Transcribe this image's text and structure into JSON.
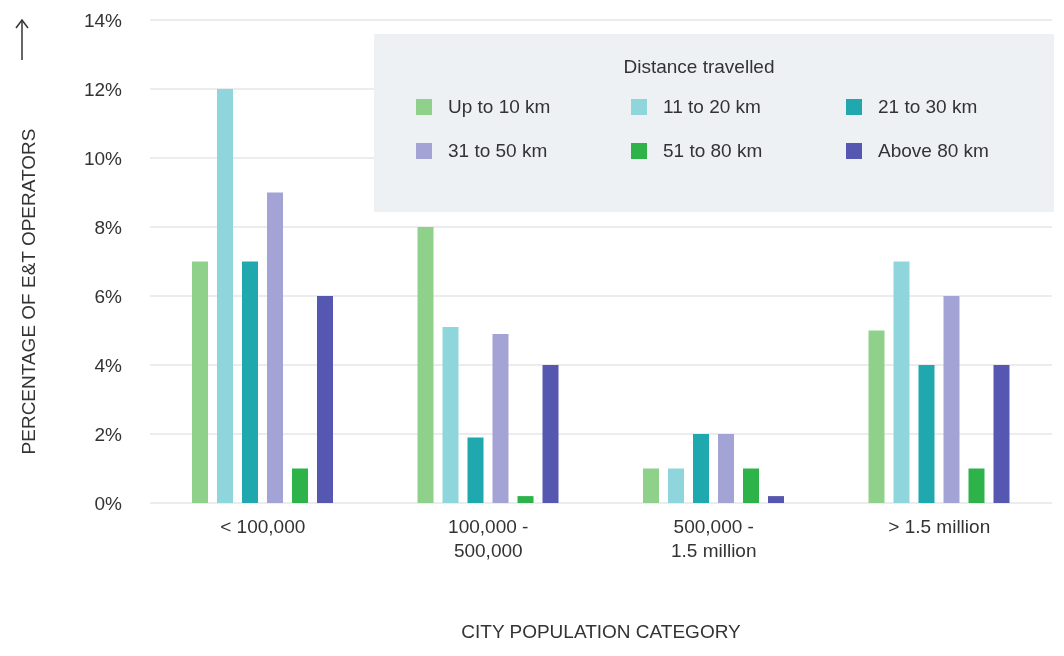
{
  "chart_data": {
    "type": "bar",
    "xlabel": "CITY POPULATION CATEGORY",
    "ylabel": "PERCENTAGE OF E&T OPERATORS",
    "legend_title": "Distance travelled",
    "categories": [
      "< 100,000",
      "100,000 - 500,000",
      "500,000 - 1.5 million",
      "> 1.5 million"
    ],
    "series": [
      {
        "name": "Up to 10 km",
        "color": "#8fd18a",
        "values": [
          7,
          8,
          1,
          5
        ]
      },
      {
        "name": "11 to 20 km",
        "color": "#8fd6dc",
        "values": [
          12,
          5.1,
          1,
          7
        ]
      },
      {
        "name": "21 to 30 km",
        "color": "#1fa8ad",
        "values": [
          7,
          1.9,
          2,
          4
        ]
      },
      {
        "name": "31 to 50 km",
        "color": "#a3a3d6",
        "values": [
          9,
          4.9,
          2,
          6
        ]
      },
      {
        "name": "51 to 80 km",
        "color": "#2db34a",
        "values": [
          1,
          0.2,
          1,
          1
        ]
      },
      {
        "name": "Above 80 km",
        "color": "#5557b0",
        "values": [
          6,
          4,
          0.2,
          4
        ]
      }
    ],
    "ylim": [
      0,
      14
    ],
    "yticks": [
      {
        "value": 0,
        "label": "0%"
      },
      {
        "value": 2,
        "label": "2%"
      },
      {
        "value": 4,
        "label": "4%"
      },
      {
        "value": 6,
        "label": "6%"
      },
      {
        "value": 8,
        "label": "8%"
      },
      {
        "value": 10,
        "label": "10%"
      },
      {
        "value": 12,
        "label": "12%"
      },
      {
        "value": 14,
        "label": "14%"
      }
    ],
    "grid": "y",
    "legend": "top right"
  }
}
